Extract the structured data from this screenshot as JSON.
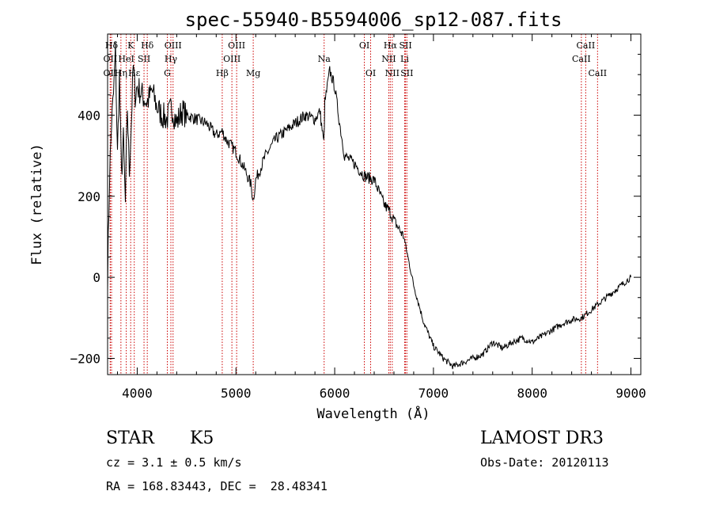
{
  "chart_data": {
    "type": "line",
    "title": "spec-55940-B5594006_sp12-087.fits",
    "xlabel": "Wavelength (Å)",
    "ylabel": "Flux (relative)",
    "xlim": [
      3700,
      9100
    ],
    "ylim": [
      -240,
      600
    ],
    "xticks": [
      4000,
      5000,
      6000,
      7000,
      8000,
      9000
    ],
    "yticks": [
      -200,
      0,
      200,
      400
    ],
    "series": [
      {
        "name": "flux",
        "x": [
          3700,
          3720,
          3740,
          3760,
          3780,
          3800,
          3820,
          3840,
          3860,
          3880,
          3900,
          3920,
          3940,
          3960,
          3980,
          4000,
          4050,
          4100,
          4150,
          4200,
          4250,
          4300,
          4350,
          4400,
          4450,
          4500,
          4600,
          4700,
          4800,
          4860,
          4900,
          5000,
          5100,
          5150,
          5175,
          5200,
          5300,
          5400,
          5500,
          5600,
          5700,
          5800,
          5850,
          5890,
          5900,
          5950,
          6000,
          6050,
          6100,
          6150,
          6200,
          6300,
          6400,
          6500,
          6563,
          6600,
          6700,
          6800,
          6900,
          7000,
          7100,
          7200,
          7300,
          7400,
          7500,
          7600,
          7700,
          7800,
          7900,
          8000,
          8100,
          8200,
          8300,
          8400,
          8500,
          8600,
          8700,
          8800,
          8900,
          9000
        ],
        "y": [
          0,
          250,
          380,
          450,
          560,
          300,
          500,
          250,
          340,
          180,
          420,
          260,
          380,
          520,
          450,
          470,
          450,
          430,
          460,
          420,
          400,
          390,
          420,
          380,
          410,
          400,
          390,
          380,
          350,
          360,
          340,
          310,
          260,
          230,
          190,
          240,
          300,
          340,
          360,
          380,
          400,
          390,
          410,
          330,
          430,
          510,
          470,
          380,
          300,
          290,
          280,
          250,
          240,
          180,
          160,
          140,
          100,
          -20,
          -110,
          -170,
          -200,
          -220,
          -210,
          -200,
          -190,
          -160,
          -175,
          -160,
          -150,
          -160,
          -145,
          -130,
          -115,
          -105,
          -100,
          -80,
          -60,
          -40,
          -20,
          0
        ]
      }
    ],
    "lines": [
      {
        "label": "Hδ",
        "x": 3740,
        "row": 1
      },
      {
        "label": "OII",
        "x": 3727,
        "row": 2
      },
      {
        "label": "OII",
        "x": 3727,
        "row": 3
      },
      {
        "label": "Hη",
        "x": 3835,
        "row": 3
      },
      {
        "label": "K",
        "x": 3934,
        "row": 1
      },
      {
        "label": "HeI",
        "x": 3889,
        "row": 2
      },
      {
        "label": "Hε",
        "x": 3970,
        "row": 3
      },
      {
        "label": "Hδ",
        "x": 4102,
        "row": 1
      },
      {
        "label": "SII",
        "x": 4069,
        "row": 2
      },
      {
        "label": "OIII",
        "x": 4363,
        "row": 1
      },
      {
        "label": "Hγ",
        "x": 4341,
        "row": 2
      },
      {
        "label": "G",
        "x": 4305,
        "row": 3
      },
      {
        "label": "OIII",
        "x": 5007,
        "row": 1
      },
      {
        "label": "OIII",
        "x": 4959,
        "row": 2
      },
      {
        "label": "Hβ",
        "x": 4861,
        "row": 3
      },
      {
        "label": "Mg",
        "x": 5175,
        "row": 3
      },
      {
        "label": "Na",
        "x": 5893,
        "row": 2
      },
      {
        "label": "OI",
        "x": 6300,
        "row": 1
      },
      {
        "label": "OI",
        "x": 6364,
        "row": 3
      },
      {
        "label": "Hα",
        "x": 6563,
        "row": 1
      },
      {
        "label": "SII",
        "x": 6717,
        "row": 1
      },
      {
        "label": "NII",
        "x": 6548,
        "row": 2
      },
      {
        "label": "Li",
        "x": 6708,
        "row": 2
      },
      {
        "label": "NII",
        "x": 6583,
        "row": 3
      },
      {
        "label": "SII",
        "x": 6731,
        "row": 3
      },
      {
        "label": "CaII",
        "x": 8542,
        "row": 1
      },
      {
        "label": "CaII",
        "x": 8498,
        "row": 2
      },
      {
        "label": "CaII",
        "x": 8662,
        "row": 3
      }
    ]
  },
  "info": {
    "class_label": "STAR",
    "subclass": "K5",
    "survey": "LAMOST DR3",
    "cz": "cz = 3.1 ± 0.5 km/s",
    "obs_date": "Obs-Date: 20120113",
    "coords": "RA = 168.83443, DEC =  28.48341"
  }
}
